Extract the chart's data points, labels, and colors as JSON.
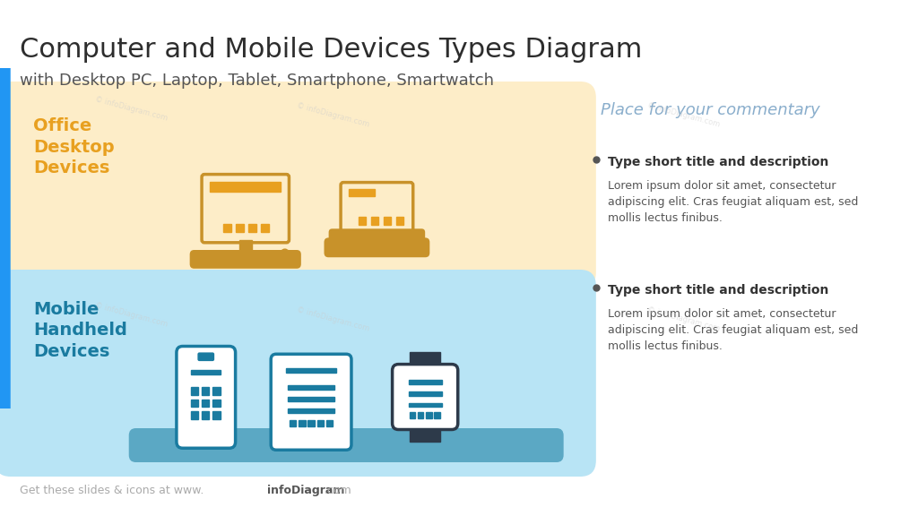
{
  "title": "Computer and Mobile Devices Types Diagram",
  "subtitle": "with Desktop PC, Laptop, Tablet, Smartphone, Smartwatch",
  "title_color": "#2d2d2d",
  "subtitle_color": "#555555",
  "title_fontsize": 22,
  "subtitle_fontsize": 13,
  "background_color": "#ffffff",
  "accent_bar_color": "#2196F3",
  "section1": {
    "label": "Office\nDesktop\nDevices",
    "label_color": "#E8A020",
    "bg_color": "#FDEDC8",
    "platform_color": "#C8922A"
  },
  "section2": {
    "label": "Mobile\nHandheld\nDevices",
    "label_color": "#1A7BA0",
    "bg_color": "#B8E4F5",
    "platform_color": "#5BA8C4"
  },
  "commentary_title": "Place for your commentary",
  "commentary_title_color": "#8AAECC",
  "bullet1_title": "Type short title and description",
  "bullet1_body": "Lorem ipsum dolor sit amet, consectetur\nadipiscing elit. Cras feugiat aliquam est, sed\nmollis lectus finibus.",
  "bullet2_title": "Type short title and description",
  "bullet2_body": "Lorem ipsum dolor sit amet, consectetur\nadipiscing elit. Cras feugiat aliquam est, sed\nmollis lectus finibus.",
  "bullet_color": "#333333",
  "body_color": "#555555",
  "footer": "Get these slides & icons at www.",
  "footer_bold": "infoDiagram",
  "footer_end": ".com",
  "footer_color": "#aaaaaa",
  "footer_bold_color": "#555555",
  "desktop_color": "#C8922A",
  "desktop_screen_fill": "#FDEDC8",
  "desktop_accent": "#E8A020",
  "laptop_color": "#C8922A",
  "laptop_screen_fill": "#FDEDC8",
  "laptop_accent": "#E8A020",
  "phone_color": "#1A7BA0",
  "phone_fill": "#B8E4F5",
  "tablet_color": "#1A7BA0",
  "tablet_fill": "#B8E4F5",
  "watch_color": "#2d3a4a",
  "watch_fill": "#B8E4F5",
  "watch_accent": "#1A7BA0"
}
